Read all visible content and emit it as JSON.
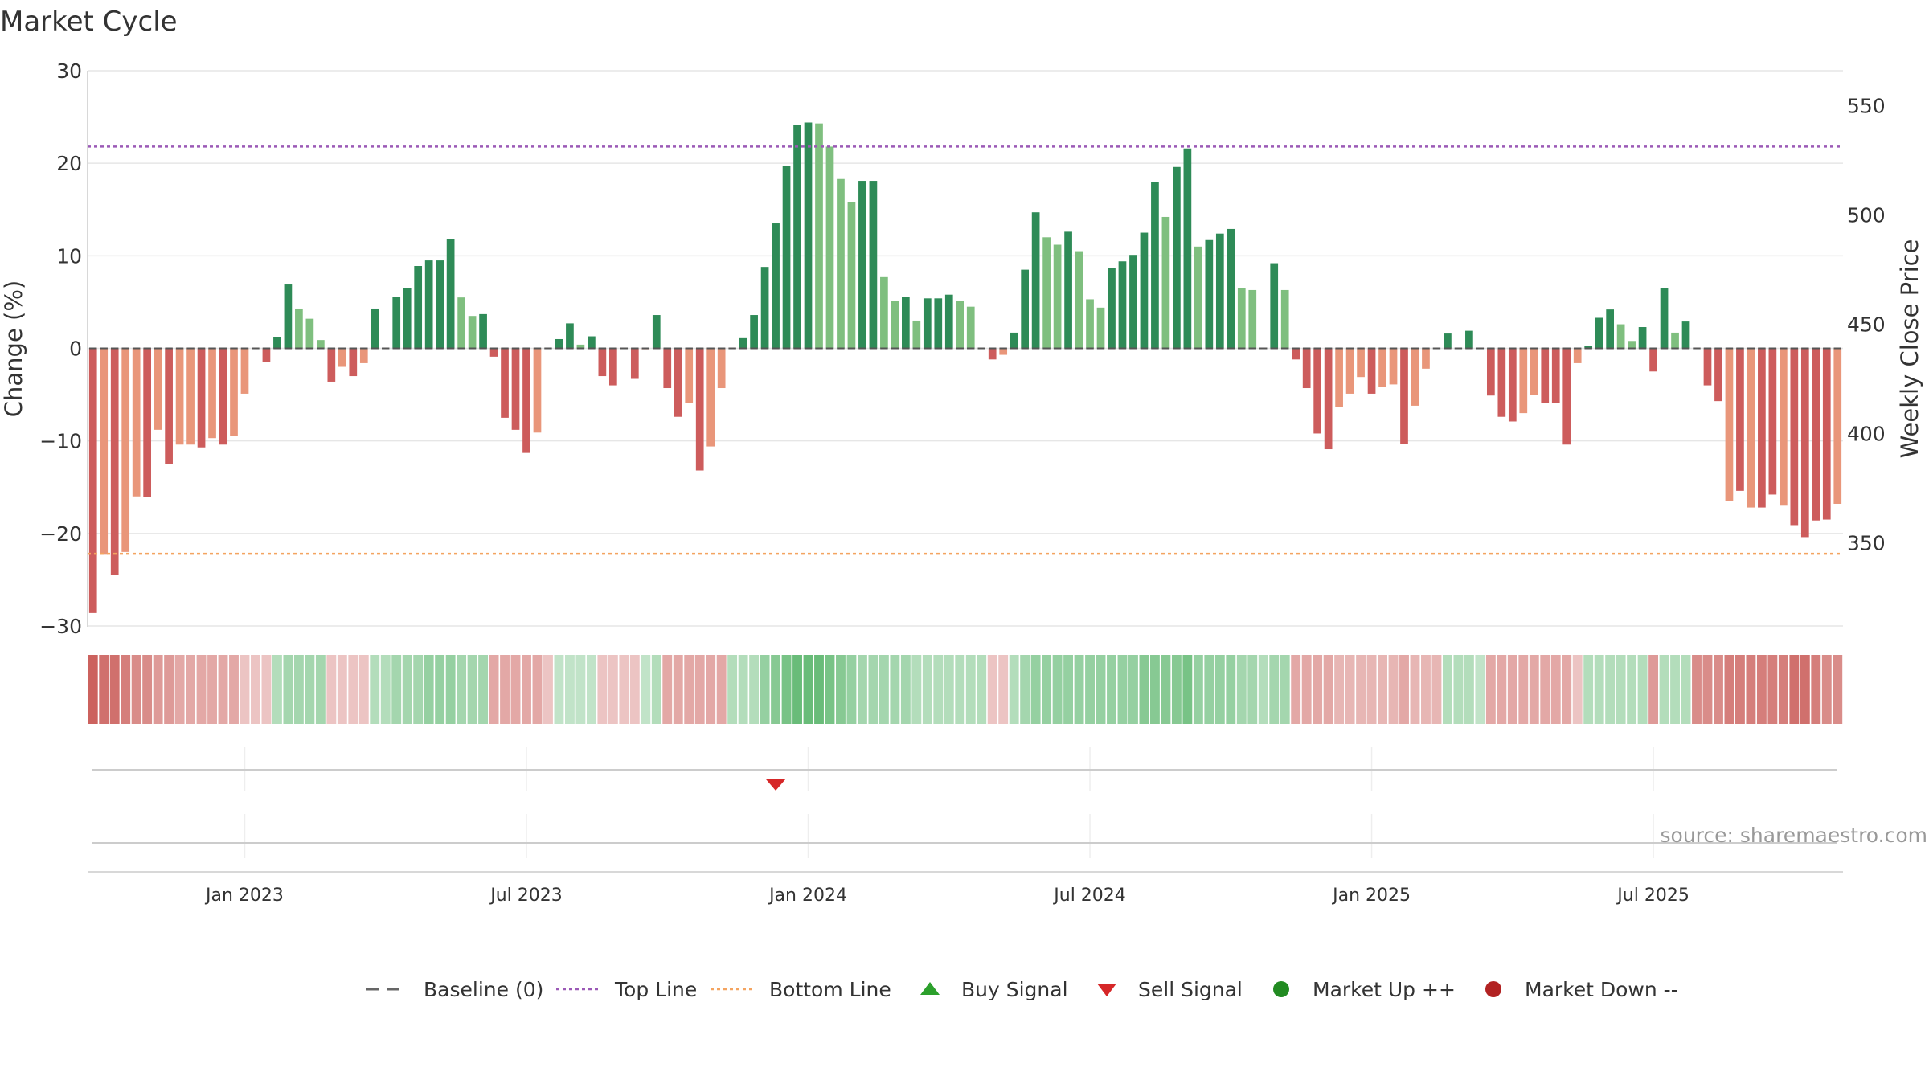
{
  "title": "Market Cycle",
  "source_note": "source: sharemaestro.com",
  "colors": {
    "strong_up": "#2e8b57",
    "weak_up": "#7fbf7f",
    "strong_down": "#cd5c5c",
    "weak_down": "#e9967a",
    "top_line": "#9b59b6",
    "bottom_line": "#f4a460",
    "buy_signal": "#2ca02c",
    "sell_signal": "#d62728",
    "market_up": "#228b22",
    "market_down": "#b22222",
    "grid": "#e6e6e6",
    "text": "#333333"
  },
  "legend": [
    {
      "label": "Baseline (0)",
      "icon": "dash-gray-line"
    },
    {
      "label": "Top Line",
      "icon": "dotted-purple-line"
    },
    {
      "label": "Bottom Line",
      "icon": "dotted-orange-line"
    },
    {
      "label": "Buy Signal",
      "icon": "green-up-triangle"
    },
    {
      "label": "Sell Signal",
      "icon": "red-down-triangle"
    },
    {
      "label": "Market Up ++",
      "icon": "green-circle"
    },
    {
      "label": "Market Down --",
      "icon": "red-circle"
    }
  ],
  "chart_data": {
    "type": "bar",
    "ylabel": "Change (%)",
    "y2label": "Weekly Close Price",
    "ylim": [
      -30,
      30
    ],
    "yticks": [
      -30,
      -20,
      -10,
      0,
      10,
      20,
      30
    ],
    "ytick_labels": [
      "−30",
      "−20",
      "−10",
      "0",
      "10",
      "20",
      "30"
    ],
    "y2ticks": [
      350,
      400,
      450,
      500,
      550
    ],
    "y2_axis_range": [
      312,
      566
    ],
    "xticks": [
      "Jan 2023",
      "Jul 2023",
      "Jan 2024",
      "Jul 2024",
      "Jan 2025",
      "Jul 2025"
    ],
    "xtick_indices": [
      14.5,
      40.5,
      66.5,
      92.5,
      118.5,
      144.5
    ],
    "top_line": 21.8,
    "bottom_line": -22.2,
    "baseline": 0,
    "grid": true,
    "legend_position": "bottom",
    "sell_signals": [
      {
        "index": 63
      }
    ],
    "buy_signals": [],
    "values": [
      -28.6,
      -22.3,
      -24.5,
      -22.0,
      -16.0,
      -16.1,
      -8.8,
      -12.5,
      -10.4,
      -10.4,
      -10.7,
      -9.7,
      -10.4,
      -9.5,
      -4.9,
      0.0,
      -1.5,
      1.2,
      6.9,
      4.3,
      3.2,
      0.9,
      -3.6,
      -2.0,
      -3.0,
      -1.6,
      4.3,
      0.0,
      5.6,
      6.5,
      8.9,
      9.5,
      9.5,
      11.8,
      5.5,
      3.5,
      3.7,
      -0.9,
      -7.5,
      -8.8,
      -11.3,
      -9.1,
      0.0,
      1.0,
      2.7,
      0.4,
      1.3,
      -3.0,
      -4.0,
      0.0,
      -3.3,
      -0.1,
      3.6,
      -4.3,
      -7.4,
      -5.9,
      -13.2,
      -10.6,
      -4.3,
      0.0,
      1.1,
      3.6,
      8.8,
      13.5,
      19.7,
      24.1,
      24.4,
      24.3,
      21.8,
      18.3,
      15.8,
      18.1,
      18.1,
      7.7,
      5.1,
      5.6,
      3.0,
      5.4,
      5.4,
      5.8,
      5.1,
      4.5,
      0.0,
      -1.2,
      -0.7,
      1.7,
      8.5,
      14.7,
      12.0,
      11.2,
      12.6,
      10.5,
      5.3,
      4.4,
      8.7,
      9.4,
      10.1,
      12.5,
      18.0,
      14.2,
      19.6,
      21.6,
      11.0,
      11.7,
      12.4,
      12.9,
      6.5,
      6.3,
      0.0,
      9.2,
      6.3,
      -1.2,
      -4.3,
      -9.2,
      -10.9,
      -6.3,
      -4.9,
      -3.1,
      -4.9,
      -4.2,
      -3.9,
      -10.3,
      -6.2,
      -2.2,
      0.0,
      1.6,
      0.0,
      1.9,
      0.0,
      -5.1,
      -7.4,
      -7.9,
      -7.0,
      -5.0,
      -5.9,
      -5.9,
      -10.4,
      -1.6,
      0.3,
      3.3,
      4.2,
      2.6,
      0.8,
      2.3,
      -2.5,
      6.5,
      1.7,
      2.9,
      0.0,
      -4.0,
      -5.7,
      -16.5,
      -15.4,
      -17.2,
      -17.2,
      -15.8,
      -17.0,
      -19.1,
      -20.4,
      -18.6,
      -18.5,
      -16.8
    ],
    "strength": [
      1,
      0,
      1,
      0,
      0,
      1,
      0,
      1,
      0,
      0,
      1,
      0,
      1,
      0,
      0,
      0,
      1,
      1,
      1,
      0,
      0,
      0,
      1,
      0,
      1,
      0,
      1,
      0,
      1,
      1,
      1,
      1,
      1,
      1,
      0,
      0,
      1,
      1,
      1,
      1,
      1,
      0,
      0,
      1,
      1,
      0,
      1,
      1,
      1,
      0,
      1,
      0,
      1,
      1,
      1,
      0,
      1,
      0,
      0,
      0,
      1,
      1,
      1,
      1,
      1,
      1,
      1,
      0,
      0,
      0,
      0,
      1,
      1,
      0,
      0,
      1,
      0,
      1,
      1,
      1,
      0,
      0,
      0,
      1,
      0,
      1,
      1,
      1,
      0,
      0,
      1,
      0,
      0,
      0,
      1,
      1,
      1,
      1,
      1,
      0,
      1,
      1,
      0,
      1,
      1,
      1,
      0,
      0,
      0,
      1,
      0,
      1,
      1,
      1,
      1,
      0,
      0,
      0,
      1,
      0,
      0,
      1,
      0,
      0,
      0,
      1,
      0,
      1,
      0,
      1,
      1,
      1,
      0,
      0,
      1,
      1,
      1,
      0,
      1,
      1,
      1,
      0,
      0,
      1,
      1,
      1,
      0,
      1,
      0,
      1,
      1,
      0,
      1,
      0,
      1,
      1,
      0,
      1,
      1,
      1,
      1,
      0,
      0,
      0
    ],
    "heat": [
      -0.9,
      -0.8,
      -0.8,
      -0.7,
      -0.6,
      -0.6,
      -0.5,
      -0.5,
      -0.4,
      -0.4,
      -0.4,
      -0.4,
      -0.4,
      -0.4,
      -0.2,
      -0.2,
      -0.2,
      0.3,
      0.4,
      0.4,
      0.4,
      0.4,
      -0.2,
      -0.2,
      -0.2,
      -0.2,
      0.3,
      0.3,
      0.4,
      0.4,
      0.4,
      0.5,
      0.5,
      0.5,
      0.4,
      0.4,
      0.4,
      -0.4,
      -0.4,
      -0.4,
      -0.4,
      -0.4,
      -0.2,
      0.2,
      0.2,
      0.2,
      0.2,
      -0.2,
      -0.2,
      -0.2,
      -0.2,
      0.2,
      0.3,
      -0.4,
      -0.4,
      -0.4,
      -0.4,
      -0.4,
      -0.4,
      0.3,
      0.3,
      0.3,
      0.5,
      0.6,
      0.7,
      0.8,
      0.8,
      0.8,
      0.7,
      0.6,
      0.5,
      0.4,
      0.4,
      0.4,
      0.4,
      0.4,
      0.3,
      0.3,
      0.3,
      0.3,
      0.3,
      0.3,
      0.3,
      -0.2,
      -0.2,
      0.3,
      0.4,
      0.5,
      0.5,
      0.5,
      0.5,
      0.5,
      0.5,
      0.5,
      0.5,
      0.5,
      0.5,
      0.6,
      0.6,
      0.6,
      0.6,
      0.7,
      0.5,
      0.5,
      0.5,
      0.5,
      0.4,
      0.4,
      0.3,
      0.4,
      0.4,
      -0.4,
      -0.4,
      -0.4,
      -0.4,
      -0.3,
      -0.3,
      -0.3,
      -0.3,
      -0.3,
      -0.3,
      -0.4,
      -0.3,
      -0.3,
      -0.3,
      0.3,
      0.3,
      0.3,
      0.2,
      -0.4,
      -0.4,
      -0.4,
      -0.4,
      -0.4,
      -0.4,
      -0.4,
      -0.4,
      -0.2,
      0.3,
      0.3,
      0.3,
      0.3,
      0.3,
      0.3,
      -0.5,
      0.3,
      0.3,
      0.3,
      -0.6,
      -0.6,
      -0.6,
      -0.7,
      -0.7,
      -0.7,
      -0.7,
      -0.7,
      -0.7,
      -0.8,
      -0.8,
      -0.7,
      -0.6,
      -0.6
    ]
  }
}
